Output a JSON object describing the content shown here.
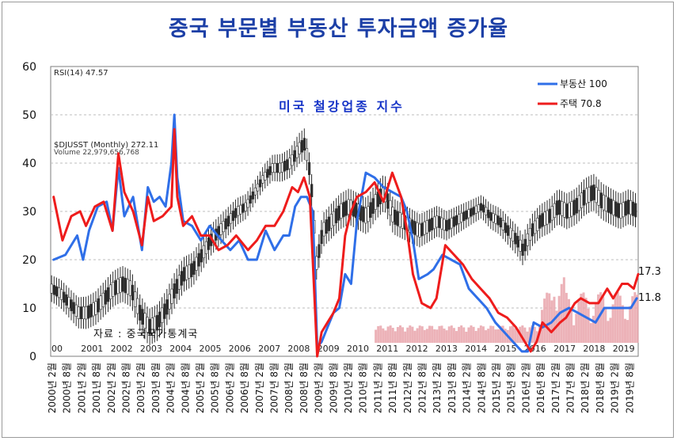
{
  "chart_data": {
    "type": "line",
    "title": "중국 부문별 부동산 투자금액 증가율",
    "xlabel": "",
    "ylabel": "",
    "ylim": [
      0,
      60
    ],
    "yticks": [
      0,
      10,
      20,
      30,
      40,
      50,
      60
    ],
    "grid": true,
    "legend": "top-right",
    "x_tick_labels": [
      "2000년 2월",
      "2000년 8월",
      "2001년 2월",
      "2001년 8월",
      "2002년 2월",
      "2002년 8월",
      "2003년 2월",
      "2003년 8월",
      "2004년 2월",
      "2004년 8월",
      "2005년 2월",
      "2005년 8월",
      "2006년 2월",
      "2006년 8월",
      "2007년 2월",
      "2007년 8월",
      "2008년 2월",
      "2008년 8월",
      "2009년 2월",
      "2009년 8월",
      "2010년 2월",
      "2010년 8월",
      "2011년 2월",
      "2011년 8월",
      "2012년 2월",
      "2012년 8월",
      "2013년 2월",
      "2013년 8월",
      "2014년 2월",
      "2014년 8월",
      "2015년 2월",
      "2015년 8월",
      "2016년 2월",
      "2016년 8월",
      "2017년 2월",
      "2017년 8월",
      "2018년 2월",
      "2018년 8월",
      "2019년 2월",
      "2019년 8월"
    ],
    "series": [
      {
        "name": "부동산 100",
        "color": "#2f6fe8",
        "last_value_label": "11.8",
        "x": [
          2000.1,
          2000.5,
          2000.9,
          2001.1,
          2001.3,
          2001.6,
          2001.9,
          2002.1,
          2002.3,
          2002.5,
          2002.8,
          2003.1,
          2003.3,
          2003.5,
          2003.7,
          2003.9,
          2004.1,
          2004.2,
          2004.3,
          2004.5,
          2004.8,
          2005.1,
          2005.4,
          2005.8,
          2006.1,
          2006.4,
          2006.7,
          2007.0,
          2007.3,
          2007.6,
          2007.9,
          2008.1,
          2008.3,
          2008.5,
          2008.7,
          2008.9,
          2009.05,
          2009.2,
          2009.4,
          2009.6,
          2009.8,
          2010.0,
          2010.2,
          2010.4,
          2010.7,
          2011.0,
          2011.3,
          2011.6,
          2011.9,
          2012.1,
          2012.3,
          2012.5,
          2012.8,
          2013.0,
          2013.3,
          2013.6,
          2013.9,
          2014.2,
          2014.5,
          2014.8,
          2015.1,
          2015.4,
          2015.7,
          2016.0,
          2016.2,
          2016.4,
          2016.7,
          2017.0,
          2017.3,
          2017.6,
          2017.9,
          2018.2,
          2018.5,
          2018.8,
          2019.1,
          2019.4,
          2019.7,
          2019.9
        ],
        "values": [
          20,
          21,
          25,
          20,
          26,
          31,
          32,
          26,
          39,
          29,
          33,
          22,
          35,
          32,
          33,
          31,
          40,
          50,
          37,
          28,
          27,
          24,
          27,
          24,
          22,
          24,
          20,
          20,
          26,
          22,
          25,
          25,
          31,
          33,
          33,
          30,
          2,
          3,
          6,
          9,
          10,
          17,
          15,
          28,
          38,
          37,
          35,
          34,
          33,
          30,
          24,
          16,
          17,
          18,
          21,
          20,
          19,
          14,
          12,
          10,
          7,
          5,
          3,
          1,
          1,
          7,
          6,
          7,
          9,
          10,
          9,
          8,
          7,
          10,
          10,
          10,
          10,
          12
        ]
      },
      {
        "name": "주택 70.8",
        "color": "#ee1c1c",
        "last_value_label": "17.3",
        "x": [
          2000.1,
          2000.4,
          2000.7,
          2001.0,
          2001.2,
          2001.5,
          2001.8,
          2002.1,
          2002.3,
          2002.5,
          2002.8,
          2003.1,
          2003.3,
          2003.5,
          2003.8,
          2004.1,
          2004.2,
          2004.3,
          2004.5,
          2004.8,
          2005.1,
          2005.4,
          2005.7,
          2006.0,
          2006.3,
          2006.7,
          2007.0,
          2007.3,
          2007.6,
          2007.9,
          2008.2,
          2008.4,
          2008.6,
          2008.8,
          2009.05,
          2009.2,
          2009.4,
          2009.6,
          2009.8,
          2010.0,
          2010.2,
          2010.4,
          2010.7,
          2011.0,
          2011.3,
          2011.6,
          2011.9,
          2012.1,
          2012.3,
          2012.6,
          2012.9,
          2013.1,
          2013.4,
          2013.7,
          2014.0,
          2014.3,
          2014.6,
          2014.9,
          2015.2,
          2015.5,
          2015.8,
          2016.0,
          2016.3,
          2016.5,
          2016.7,
          2017.0,
          2017.3,
          2017.5,
          2017.8,
          2018.0,
          2018.3,
          2018.6,
          2018.9,
          2019.1,
          2019.4,
          2019.6,
          2019.8,
          2019.95
        ],
        "values": [
          33,
          24,
          29,
          30,
          27,
          31,
          32,
          26,
          42,
          34,
          30,
          23,
          33,
          28,
          29,
          31,
          47,
          33,
          27,
          29,
          25,
          25,
          22,
          23,
          25,
          22,
          24,
          27,
          27,
          30,
          35,
          34,
          37,
          33,
          0,
          5,
          7,
          9,
          12,
          25,
          30,
          33,
          34,
          36,
          32,
          38,
          33,
          26,
          17,
          11,
          10,
          12,
          23,
          21,
          19,
          16,
          14,
          12,
          9,
          8,
          6,
          4,
          1,
          3,
          7,
          5,
          7,
          8,
          11,
          12,
          11,
          11,
          14,
          12,
          15,
          15,
          14,
          17
        ]
      }
    ],
    "legend_entries": [
      "부동산 100",
      "주택 70.8"
    ],
    "end_labels": [
      "17.3",
      "11.8"
    ]
  },
  "background_chart": {
    "header_rsi": "RSI(14) 47.57",
    "header_djusst": "$DJUSST (Monthly) 272.11",
    "header_volume": "Volume 22,979,656,768",
    "overlay_title": "미국 철강업종 지수",
    "source_note": "자료 : 중국국가통계국",
    "inner_years": [
      "00",
      "2001",
      "2002",
      "2003",
      "2004",
      "2005",
      "2006",
      "2007",
      "2008",
      "2009",
      "2010",
      "2011",
      "2012",
      "2013",
      "2014",
      "2015",
      "2016",
      "2017",
      "2018",
      "2019"
    ],
    "price_path": [
      [
        2000.0,
        14
      ],
      [
        2000.3,
        13
      ],
      [
        2000.6,
        11
      ],
      [
        2000.9,
        9
      ],
      [
        2001.2,
        9
      ],
      [
        2001.5,
        10
      ],
      [
        2001.8,
        12
      ],
      [
        2002.1,
        14
      ],
      [
        2002.4,
        15
      ],
      [
        2002.7,
        14
      ],
      [
        2003.0,
        9
      ],
      [
        2003.3,
        6
      ],
      [
        2003.6,
        7
      ],
      [
        2003.9,
        10
      ],
      [
        2004.2,
        14
      ],
      [
        2004.5,
        17
      ],
      [
        2004.8,
        18
      ],
      [
        2005.1,
        21
      ],
      [
        2005.4,
        24
      ],
      [
        2005.7,
        26
      ],
      [
        2006.0,
        28
      ],
      [
        2006.3,
        30
      ],
      [
        2006.6,
        31
      ],
      [
        2006.9,
        34
      ],
      [
        2007.2,
        37
      ],
      [
        2007.5,
        39
      ],
      [
        2007.8,
        39
      ],
      [
        2008.1,
        40
      ],
      [
        2008.4,
        43
      ],
      [
        2008.6,
        44
      ],
      [
        2008.8,
        37
      ],
      [
        2009.0,
        19
      ],
      [
        2009.2,
        26
      ],
      [
        2009.5,
        28
      ],
      [
        2009.8,
        30
      ],
      [
        2010.1,
        31
      ],
      [
        2010.4,
        30
      ],
      [
        2010.7,
        29
      ],
      [
        2011.0,
        32
      ],
      [
        2011.3,
        34
      ],
      [
        2011.6,
        29
      ],
      [
        2011.9,
        28
      ],
      [
        2012.2,
        27
      ],
      [
        2012.5,
        26
      ],
      [
        2012.8,
        27
      ],
      [
        2013.1,
        28
      ],
      [
        2013.4,
        27
      ],
      [
        2013.7,
        28
      ],
      [
        2014.0,
        29
      ],
      [
        2014.3,
        30
      ],
      [
        2014.6,
        31
      ],
      [
        2014.9,
        29
      ],
      [
        2015.2,
        28
      ],
      [
        2015.5,
        26
      ],
      [
        2015.8,
        24
      ],
      [
        2016.0,
        22
      ],
      [
        2016.3,
        26
      ],
      [
        2016.6,
        28
      ],
      [
        2016.9,
        29
      ],
      [
        2017.2,
        31
      ],
      [
        2017.5,
        30
      ],
      [
        2017.8,
        31
      ],
      [
        2018.1,
        33
      ],
      [
        2018.4,
        34
      ],
      [
        2018.7,
        32
      ],
      [
        2019.0,
        31
      ],
      [
        2019.3,
        30
      ],
      [
        2019.6,
        31
      ],
      [
        2019.9,
        30
      ]
    ]
  },
  "colors": {
    "title": "#1c3fa6",
    "grid": "#bdbdbd",
    "candles": "#2c2c2c",
    "volume": "#e9a4ac",
    "overlay_title": "#1533c7"
  }
}
